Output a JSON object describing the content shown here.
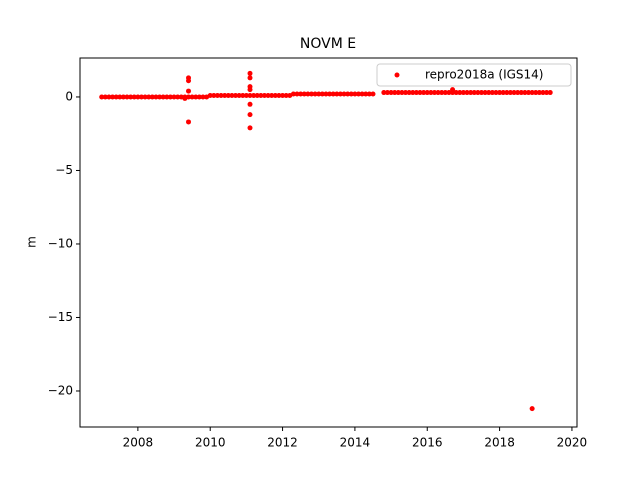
{
  "chart_data": {
    "type": "scatter",
    "title": "NOVM E",
    "y_label": "m",
    "series": [
      {
        "name": "repro2018a (IGS14)",
        "color": "#ff0000",
        "x": [
          2007,
          2007.1,
          2007.2,
          2007.3,
          2007.4,
          2007.5,
          2007.6,
          2007.7,
          2007.8,
          2007.9,
          2008,
          2008.1,
          2008.2,
          2008.3,
          2008.4,
          2008.5,
          2008.6,
          2008.7,
          2008.8,
          2008.9,
          2009,
          2009.1,
          2009.2,
          2009.3,
          2009.4,
          2009.5,
          2009.6,
          2009.7,
          2009.8,
          2009.9,
          2010,
          2010.1,
          2010.2,
          2010.3,
          2010.4,
          2010.5,
          2010.6,
          2010.7,
          2010.8,
          2010.9,
          2011,
          2011.1,
          2011.2,
          2011.3,
          2011.4,
          2011.5,
          2011.6,
          2011.7,
          2011.8,
          2011.9,
          2012,
          2012.1,
          2012.2,
          2012.3,
          2012.4,
          2012.5,
          2012.6,
          2012.7,
          2012.8,
          2012.9,
          2013,
          2013.1,
          2013.2,
          2013.3,
          2013.4,
          2013.5,
          2013.6,
          2013.7,
          2013.8,
          2013.9,
          2014,
          2014.1,
          2014.2,
          2014.3,
          2014.4,
          2014.5,
          2014.8,
          2014.9,
          2015,
          2015.1,
          2015.2,
          2015.3,
          2015.4,
          2015.5,
          2015.6,
          2015.7,
          2015.8,
          2015.9,
          2016,
          2016.1,
          2016.2,
          2016.3,
          2016.4,
          2016.5,
          2016.6,
          2016.7,
          2016.8,
          2016.9,
          2017,
          2017.1,
          2017.2,
          2017.3,
          2017.4,
          2017.5,
          2017.6,
          2017.7,
          2017.8,
          2017.9,
          2018,
          2018.1,
          2018.2,
          2018.3,
          2018.4,
          2018.5,
          2018.6,
          2018.7,
          2018.8,
          2018.9,
          2019,
          2019.1,
          2019.2,
          2019.3,
          2019.4,
          2009.4,
          2009.4,
          2009.4,
          2009.4,
          2009.3,
          2011.1,
          2011.1,
          2011.1,
          2011.1,
          2011.1,
          2011.1,
          2011.1,
          2016.7,
          2018.9
        ],
        "values": [
          0,
          0,
          0,
          0,
          0,
          0,
          0,
          0,
          0,
          0,
          0,
          0,
          0,
          0,
          0,
          0,
          0,
          0,
          0,
          0,
          0,
          0,
          0,
          0,
          0,
          0,
          0,
          0,
          0,
          0,
          0.1,
          0.1,
          0.1,
          0.1,
          0.1,
          0.1,
          0.1,
          0.1,
          0.1,
          0.1,
          0.1,
          0.1,
          0.1,
          0.1,
          0.1,
          0.1,
          0.1,
          0.1,
          0.1,
          0.1,
          0.1,
          0.1,
          0.1,
          0.2,
          0.2,
          0.2,
          0.2,
          0.2,
          0.2,
          0.2,
          0.2,
          0.2,
          0.2,
          0.2,
          0.2,
          0.2,
          0.2,
          0.2,
          0.2,
          0.2,
          0.2,
          0.2,
          0.2,
          0.2,
          0.2,
          0.2,
          0.3,
          0.3,
          0.3,
          0.3,
          0.3,
          0.3,
          0.3,
          0.3,
          0.3,
          0.3,
          0.3,
          0.3,
          0.3,
          0.3,
          0.3,
          0.3,
          0.3,
          0.3,
          0.3,
          0.3,
          0.3,
          0.3,
          0.3,
          0.3,
          0.3,
          0.3,
          0.3,
          0.3,
          0.3,
          0.3,
          0.3,
          0.3,
          0.3,
          0.3,
          0.3,
          0.3,
          0.3,
          0.3,
          0.3,
          0.3,
          0.3,
          0.3,
          0.3,
          0.3,
          0.3,
          0.3,
          0.3,
          1.3,
          1.1,
          0.4,
          -1.7,
          -0.1,
          1.6,
          1.3,
          0.7,
          0.5,
          -0.5,
          -1.2,
          -2.1,
          0.5,
          -21.2
        ]
      }
    ],
    "xlim": [
      2006.4,
      2020.14
    ],
    "xticks": [
      2008,
      2010,
      2012,
      2014,
      2016,
      2018,
      2020
    ],
    "ylim": [
      -22.45,
      2.65
    ],
    "yticks": [
      {
        "value": -20,
        "label": "−20"
      },
      {
        "value": -15,
        "label": "−15"
      },
      {
        "value": -10,
        "label": "−10"
      },
      {
        "value": -5,
        "label": "−5"
      },
      0
    ],
    "legend": "upper right",
    "grid": false
  }
}
